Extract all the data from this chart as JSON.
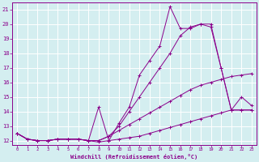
{
  "title": "",
  "xlabel": "Windchill (Refroidissement éolien,°C)",
  "background_color": "#d4eef0",
  "grid_color": "#ffffff",
  "line_color": "#8b008b",
  "xlim": [
    -0.5,
    23.5
  ],
  "ylim": [
    11.7,
    21.5
  ],
  "yticks": [
    12,
    13,
    14,
    15,
    16,
    17,
    18,
    19,
    20,
    21
  ],
  "xticks": [
    0,
    1,
    2,
    3,
    4,
    5,
    6,
    7,
    8,
    9,
    10,
    11,
    12,
    13,
    14,
    15,
    16,
    17,
    18,
    19,
    20,
    21,
    22,
    23
  ],
  "series1_x": [
    0,
    1,
    2,
    3,
    4,
    5,
    6,
    7,
    8,
    9,
    10,
    11,
    12,
    13,
    14,
    15,
    16,
    17,
    18,
    19,
    20,
    21,
    22,
    23
  ],
  "series1_y": [
    12.5,
    12.1,
    12.0,
    12.0,
    12.1,
    12.1,
    12.1,
    12.0,
    11.9,
    12.0,
    12.1,
    12.2,
    12.3,
    12.5,
    12.7,
    12.9,
    13.1,
    13.3,
    13.5,
    13.7,
    13.9,
    14.1,
    14.1,
    14.1
  ],
  "series2_x": [
    0,
    1,
    2,
    3,
    4,
    5,
    6,
    7,
    8,
    9,
    10,
    11,
    12,
    13,
    14,
    15,
    16,
    17,
    18,
    19,
    20,
    21,
    22,
    23
  ],
  "series2_y": [
    12.5,
    12.1,
    12.0,
    12.0,
    12.1,
    12.1,
    12.1,
    12.0,
    12.0,
    12.3,
    12.7,
    13.1,
    13.5,
    13.9,
    14.3,
    14.7,
    15.1,
    15.5,
    15.8,
    16.0,
    16.2,
    16.4,
    16.5,
    16.6
  ],
  "series3_x": [
    0,
    1,
    2,
    3,
    4,
    5,
    6,
    7,
    8,
    9,
    10,
    11,
    12,
    13,
    14,
    15,
    16,
    17,
    18,
    19,
    20,
    21,
    22,
    23
  ],
  "series3_y": [
    12.5,
    12.1,
    12.0,
    12.0,
    12.1,
    12.1,
    12.1,
    12.0,
    12.0,
    12.3,
    13.0,
    14.0,
    15.0,
    16.0,
    17.0,
    18.0,
    19.2,
    19.8,
    20.0,
    19.8,
    17.0,
    14.1,
    15.0,
    14.4
  ],
  "series4_x": [
    0,
    1,
    2,
    3,
    4,
    5,
    6,
    7,
    8,
    9,
    10,
    11,
    12,
    13,
    14,
    15,
    16,
    17,
    18,
    19,
    20,
    21,
    22,
    23
  ],
  "series4_y": [
    12.5,
    12.1,
    12.0,
    12.0,
    12.1,
    12.1,
    12.1,
    12.0,
    14.3,
    12.0,
    13.2,
    14.3,
    16.5,
    17.5,
    18.5,
    21.2,
    19.7,
    19.7,
    20.0,
    20.0,
    17.0,
    14.1,
    14.1,
    14.1
  ]
}
